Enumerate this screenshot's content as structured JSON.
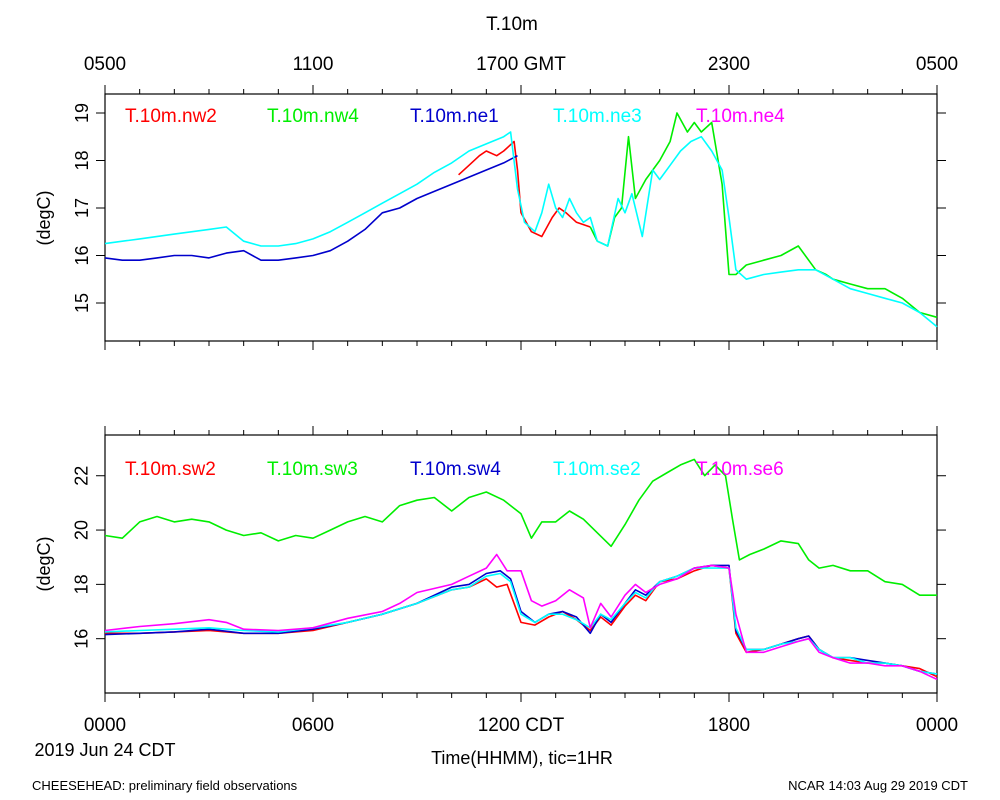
{
  "figure": {
    "title": "T.10m",
    "footer_left": "CHEESEHEAD: preliminary field observations",
    "footer_right": "NCAR 14:03 Aug 29 2019 CDT",
    "date_label": "2019 Jun 24 CDT",
    "xlabel": "Time(HHMM), tic=1HR"
  },
  "top_axis_ticks": [
    "0500",
    "1100",
    "1700 GMT",
    "2300",
    "0500"
  ],
  "bottom_axis_ticks": [
    "0000",
    "0600",
    "1200 CDT",
    "1800",
    "0000"
  ],
  "chart_data": [
    {
      "type": "line",
      "ylabel": "(degC)",
      "xlim": [
        0,
        24
      ],
      "ylim": [
        14.2,
        19.4
      ],
      "yticks": [
        15,
        16,
        17,
        18,
        19
      ],
      "ytick_labels": [
        "15",
        "16",
        "17",
        "18",
        "19"
      ],
      "series": [
        {
          "name": "T.10m.nw2",
          "color": "#ff0000",
          "x": [
            10.2,
            10.5,
            10.8,
            11.0,
            11.3,
            11.5,
            11.8,
            11.9,
            12.0,
            12.3,
            12.6,
            12.9,
            13.1,
            13.3,
            13.6,
            14.0
          ],
          "y": [
            17.7,
            17.9,
            18.1,
            18.2,
            18.1,
            18.2,
            18.4,
            17.8,
            16.9,
            16.5,
            16.4,
            16.8,
            17.0,
            16.9,
            16.7,
            16.6
          ]
        },
        {
          "name": "T.10m.nw4",
          "color": "#00ee00",
          "x": [
            14.0,
            14.2,
            14.5,
            14.7,
            14.9,
            15.1,
            15.3,
            15.6,
            16.0,
            16.3,
            16.5,
            16.8,
            17.0,
            17.2,
            17.5,
            17.8,
            18.0,
            18.2,
            18.5,
            19.0,
            19.5,
            20.0,
            20.5,
            20.8,
            21.0,
            21.5,
            22.0,
            22.5,
            23.0,
            23.5,
            24.0
          ],
          "y": [
            16.6,
            16.3,
            16.2,
            16.8,
            17.0,
            18.5,
            17.2,
            17.6,
            18.0,
            18.4,
            19.0,
            18.6,
            18.8,
            18.6,
            18.8,
            17.5,
            15.6,
            15.6,
            15.8,
            15.9,
            16.0,
            16.2,
            15.7,
            15.6,
            15.5,
            15.4,
            15.3,
            15.3,
            15.1,
            14.8,
            14.7
          ]
        },
        {
          "name": "T.10m.ne1",
          "color": "#0000cc",
          "x": [
            0,
            0.5,
            1.0,
            1.5,
            2.0,
            2.5,
            3.0,
            3.5,
            4.0,
            4.5,
            5.0,
            5.5,
            6.0,
            6.5,
            7.0,
            7.5,
            8.0,
            8.5,
            9.0,
            9.5,
            10.0,
            10.5,
            11.0,
            11.5,
            11.9
          ],
          "y": [
            15.95,
            15.9,
            15.9,
            15.95,
            16.0,
            16.0,
            15.95,
            16.05,
            16.1,
            15.9,
            15.9,
            15.95,
            16.0,
            16.1,
            16.3,
            16.55,
            16.9,
            17.0,
            17.2,
            17.35,
            17.5,
            17.65,
            17.8,
            17.95,
            18.1
          ]
        },
        {
          "name": "T.10m.ne3",
          "color": "#00ffff",
          "x": [
            0,
            1.0,
            2.0,
            3.0,
            3.5,
            4.0,
            4.5,
            5.0,
            5.5,
            6.0,
            6.5,
            7.0,
            7.5,
            8.0,
            8.5,
            9.0,
            9.5,
            10.0,
            10.5,
            11.0,
            11.5,
            11.7,
            11.9,
            12.1,
            12.4,
            12.6,
            12.8,
            13.0,
            13.2,
            13.4,
            13.6,
            13.8,
            14.0,
            14.2,
            14.5,
            14.8,
            15.0,
            15.2,
            15.5,
            15.8,
            16.0,
            16.3,
            16.6,
            16.9,
            17.2,
            17.5,
            17.8,
            18.0,
            18.2,
            18.5,
            19.0,
            19.5,
            20.0,
            20.5,
            21.0,
            21.5,
            22.0,
            22.5,
            23.0,
            23.5,
            24.0
          ],
          "y": [
            16.25,
            16.35,
            16.45,
            16.55,
            16.6,
            16.3,
            16.2,
            16.2,
            16.25,
            16.35,
            16.5,
            16.7,
            16.9,
            17.1,
            17.3,
            17.5,
            17.75,
            17.95,
            18.2,
            18.35,
            18.5,
            18.6,
            17.4,
            16.7,
            16.5,
            16.9,
            17.5,
            17.0,
            16.8,
            17.2,
            16.9,
            16.7,
            16.8,
            16.3,
            16.2,
            17.2,
            16.9,
            17.3,
            16.4,
            17.8,
            17.6,
            17.9,
            18.2,
            18.4,
            18.5,
            18.2,
            17.8,
            16.8,
            15.7,
            15.5,
            15.6,
            15.65,
            15.7,
            15.7,
            15.5,
            15.3,
            15.2,
            15.1,
            15.0,
            14.8,
            14.5
          ]
        },
        {
          "name": "T.10m.ne4",
          "color": "#ff00ff",
          "x": [],
          "y": []
        }
      ]
    },
    {
      "type": "line",
      "ylabel": "(degC)",
      "xlim": [
        0,
        24
      ],
      "ylim": [
        14.0,
        23.5
      ],
      "yticks": [
        16,
        18,
        20,
        22
      ],
      "ytick_labels": [
        "16",
        "18",
        "20",
        "22"
      ],
      "series": [
        {
          "name": "T.10m.sw2",
          "color": "#ff0000",
          "x": [
            0,
            1.0,
            2.0,
            3.0,
            4.0,
            5.0,
            6.0,
            7.0,
            8.0,
            9.0,
            10.0,
            10.5,
            11.0,
            11.3,
            11.6,
            12.0,
            12.4,
            12.8,
            13.2,
            13.6,
            14.0,
            14.3,
            14.6,
            15.0,
            15.3,
            15.6,
            16.0,
            16.5,
            17.0,
            17.5,
            18.0,
            18.2,
            18.5,
            19.0,
            19.5,
            20.0,
            20.3,
            20.6,
            21.0,
            21.5,
            22.0,
            22.5,
            23.0,
            23.5,
            24.0
          ],
          "y": [
            16.2,
            16.2,
            16.25,
            16.3,
            16.2,
            16.2,
            16.3,
            16.6,
            16.9,
            17.3,
            17.8,
            17.9,
            18.2,
            17.9,
            18.0,
            16.6,
            16.5,
            16.8,
            17.0,
            16.7,
            16.3,
            16.8,
            16.5,
            17.2,
            17.6,
            17.4,
            18.1,
            18.2,
            18.5,
            18.7,
            18.6,
            16.2,
            15.5,
            15.6,
            15.8,
            16.0,
            16.1,
            15.6,
            15.3,
            15.2,
            15.1,
            15.1,
            15.0,
            14.9,
            14.6
          ]
        },
        {
          "name": "T.10m.sw3",
          "color": "#00ee00",
          "x": [
            0,
            0.5,
            1.0,
            1.5,
            2.0,
            2.5,
            3.0,
            3.5,
            4.0,
            4.5,
            5.0,
            5.5,
            6.0,
            6.5,
            7.0,
            7.5,
            8.0,
            8.5,
            9.0,
            9.5,
            10.0,
            10.5,
            11.0,
            11.5,
            12.0,
            12.3,
            12.6,
            13.0,
            13.4,
            13.8,
            14.2,
            14.6,
            15.0,
            15.4,
            15.8,
            16.2,
            16.6,
            17.0,
            17.3,
            17.6,
            17.9,
            18.1,
            18.3,
            18.6,
            19.0,
            19.5,
            20.0,
            20.3,
            20.6,
            21.0,
            21.5,
            22.0,
            22.5,
            23.0,
            23.5,
            24.0
          ],
          "y": [
            19.8,
            19.7,
            20.3,
            20.5,
            20.3,
            20.4,
            20.3,
            20.0,
            19.8,
            19.9,
            19.6,
            19.8,
            19.7,
            20.0,
            20.3,
            20.5,
            20.3,
            20.9,
            21.1,
            21.2,
            20.7,
            21.2,
            21.4,
            21.1,
            20.6,
            19.7,
            20.3,
            20.3,
            20.7,
            20.4,
            19.9,
            19.4,
            20.2,
            21.1,
            21.8,
            22.1,
            22.4,
            22.6,
            22.0,
            22.4,
            22.0,
            20.4,
            18.9,
            19.1,
            19.3,
            19.6,
            19.5,
            18.9,
            18.6,
            18.7,
            18.5,
            18.5,
            18.1,
            18.0,
            17.6,
            17.6
          ]
        },
        {
          "name": "T.10m.sw4",
          "color": "#0000cc",
          "x": [
            0,
            1.0,
            2.0,
            3.0,
            4.0,
            5.0,
            6.0,
            7.0,
            8.0,
            9.0,
            10.0,
            10.5,
            11.0,
            11.4,
            11.7,
            12.0,
            12.4,
            12.8,
            13.2,
            13.6,
            14.0,
            14.3,
            14.6,
            15.0,
            15.3,
            15.6,
            16.0,
            16.5,
            17.0,
            17.5,
            18.0,
            18.2,
            18.5,
            19.0,
            19.5,
            20.0,
            20.3,
            20.6,
            21.0,
            21.5,
            22.0,
            22.5,
            23.0,
            23.5,
            24.0
          ],
          "y": [
            16.15,
            16.2,
            16.25,
            16.35,
            16.2,
            16.2,
            16.35,
            16.6,
            16.9,
            17.3,
            17.9,
            18.0,
            18.4,
            18.5,
            18.2,
            17.0,
            16.6,
            16.9,
            17.0,
            16.8,
            16.2,
            16.9,
            16.6,
            17.3,
            17.8,
            17.6,
            18.1,
            18.3,
            18.6,
            18.7,
            18.7,
            16.3,
            15.6,
            15.6,
            15.8,
            16.0,
            16.1,
            15.6,
            15.3,
            15.3,
            15.2,
            15.1,
            15.0,
            14.8,
            14.7
          ]
        },
        {
          "name": "T.10m.se2",
          "color": "#00ffff",
          "x": [
            0,
            1.0,
            2.0,
            3.0,
            4.0,
            5.0,
            6.0,
            7.0,
            8.0,
            9.0,
            10.0,
            10.5,
            11.0,
            11.4,
            11.7,
            12.0,
            12.4,
            12.8,
            13.2,
            13.6,
            14.0,
            14.3,
            14.6,
            15.0,
            15.3,
            15.6,
            16.0,
            16.5,
            17.0,
            17.5,
            18.0,
            18.2,
            18.5,
            19.0,
            19.5,
            20.0,
            20.3,
            20.6,
            21.0,
            21.5,
            22.0,
            22.5,
            23.0,
            23.5,
            24.0
          ],
          "y": [
            16.25,
            16.3,
            16.35,
            16.4,
            16.3,
            16.25,
            16.4,
            16.6,
            16.9,
            17.3,
            17.8,
            17.9,
            18.3,
            18.4,
            18.1,
            16.9,
            16.6,
            16.9,
            16.9,
            16.7,
            16.4,
            16.9,
            16.7,
            17.3,
            17.7,
            17.5,
            18.1,
            18.3,
            18.6,
            18.6,
            18.6,
            16.4,
            15.6,
            15.6,
            15.8,
            15.9,
            16.0,
            15.6,
            15.3,
            15.3,
            15.1,
            15.1,
            15.0,
            14.8,
            14.7
          ]
        },
        {
          "name": "T.10m.se6",
          "color": "#ff00ff",
          "x": [
            0,
            1.0,
            2.0,
            3.0,
            3.5,
            4.0,
            5.0,
            6.0,
            7.0,
            8.0,
            8.5,
            9.0,
            10.0,
            10.5,
            11.0,
            11.3,
            11.6,
            12.0,
            12.3,
            12.6,
            13.0,
            13.4,
            13.8,
            14.0,
            14.3,
            14.6,
            15.0,
            15.3,
            15.6,
            16.0,
            16.5,
            17.0,
            17.5,
            18.0,
            18.2,
            18.5,
            19.0,
            19.5,
            20.0,
            20.3,
            20.6,
            21.0,
            21.5,
            22.0,
            22.5,
            23.0,
            23.5,
            24.0
          ],
          "y": [
            16.3,
            16.45,
            16.55,
            16.7,
            16.6,
            16.35,
            16.3,
            16.4,
            16.75,
            17.0,
            17.3,
            17.7,
            18.0,
            18.3,
            18.6,
            19.1,
            18.5,
            18.5,
            17.4,
            17.2,
            17.4,
            17.8,
            17.5,
            16.4,
            17.3,
            16.8,
            17.6,
            18.0,
            17.7,
            18.0,
            18.2,
            18.6,
            18.7,
            18.6,
            16.9,
            15.5,
            15.5,
            15.7,
            15.9,
            16.0,
            15.5,
            15.3,
            15.1,
            15.1,
            15.0,
            15.0,
            14.8,
            14.5
          ]
        }
      ]
    }
  ]
}
